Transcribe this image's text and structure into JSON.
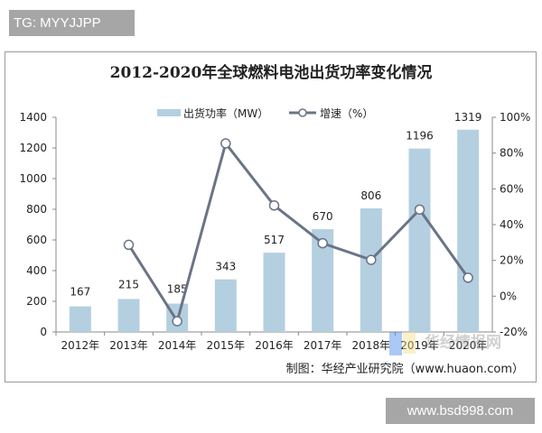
{
  "watermark_top": "TG: MYYJJPP",
  "watermark_bottom": "www.bsd998.com",
  "logo_watermark": "华经情报网 huaon.com",
  "chart_data": {
    "type": "bar+line",
    "title": "2012-2020年全球燃料电池出货功率变化情况",
    "categories": [
      "2012年",
      "2013年",
      "2014年",
      "2015年",
      "2016年",
      "2017年",
      "2018年",
      "2019年",
      "2020年"
    ],
    "series": [
      {
        "name": "出货功率（MW）",
        "type": "bar",
        "axis": "left",
        "values": [
          167,
          215,
          185,
          343,
          517,
          670,
          806,
          1196,
          1319
        ],
        "color": "#b4cfe0"
      },
      {
        "name": "增速（%）",
        "type": "line",
        "axis": "right",
        "values": [
          null,
          28.7,
          -14.0,
          85.4,
          50.7,
          29.6,
          20.3,
          48.4,
          10.3
        ],
        "color": "#6b7486"
      }
    ],
    "left_axis": {
      "range": [
        0,
        1400
      ],
      "ticks": [
        "0",
        "200",
        "400",
        "600",
        "800",
        "1000",
        "1200",
        "1400"
      ]
    },
    "right_axis": {
      "range": [
        -20,
        100
      ],
      "ticks": [
        "-20%",
        "0%",
        "20%",
        "40%",
        "60%",
        "80%",
        "100%"
      ]
    },
    "legend_position": "top",
    "grid": false,
    "source": "制图：华经产业研究院（www.huaon.com）"
  }
}
